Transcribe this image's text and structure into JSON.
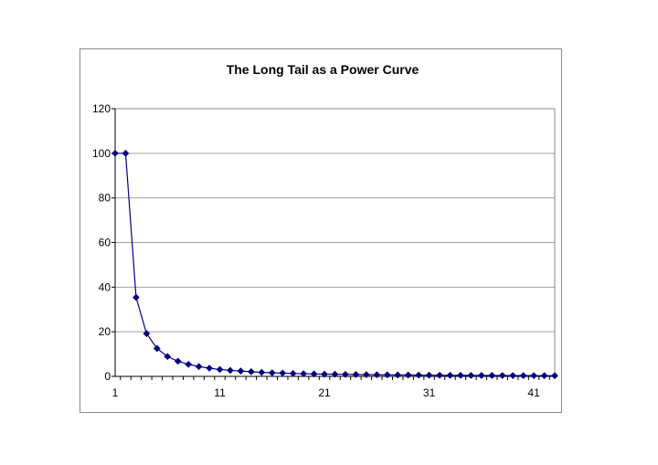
{
  "chart_data": {
    "type": "line",
    "title": "The Long Tail as a Power Curve",
    "xlabel": "",
    "ylabel": "",
    "x": [
      1,
      2,
      3,
      4,
      5,
      6,
      7,
      8,
      9,
      10,
      11,
      12,
      13,
      14,
      15,
      16,
      17,
      18,
      19,
      20,
      21,
      22,
      23,
      24,
      25,
      26,
      27,
      28,
      29,
      30,
      31,
      32,
      33,
      34,
      35,
      36,
      37,
      38,
      39,
      40,
      41,
      42,
      43
    ],
    "series": [
      {
        "values": [
          100,
          100,
          35.4,
          19.2,
          12.5,
          8.9,
          6.8,
          5.4,
          4.4,
          3.7,
          3.1,
          2.7,
          2.4,
          2.1,
          1.8,
          1.6,
          1.5,
          1.3,
          1.2,
          1.1,
          1.0,
          0.96,
          0.89,
          0.83,
          0.78,
          0.73,
          0.68,
          0.64,
          0.61,
          0.57,
          0.54,
          0.51,
          0.49,
          0.47,
          0.44,
          0.42,
          0.41,
          0.39,
          0.37,
          0.36,
          0.34,
          0.33,
          0.32
        ],
        "color": "#000080",
        "marker": "diamond"
      }
    ],
    "xticks": [
      "1",
      "11",
      "21",
      "31",
      "41"
    ],
    "yticks": [
      "0",
      "20",
      "40",
      "60",
      "80",
      "100",
      "120"
    ],
    "ylim": [
      0,
      120
    ],
    "xlim": [
      1,
      43
    ],
    "grid": "horizontal",
    "legend": "none",
    "plot_background": "#ffffff",
    "gridline_color": "#a0a0a0"
  }
}
